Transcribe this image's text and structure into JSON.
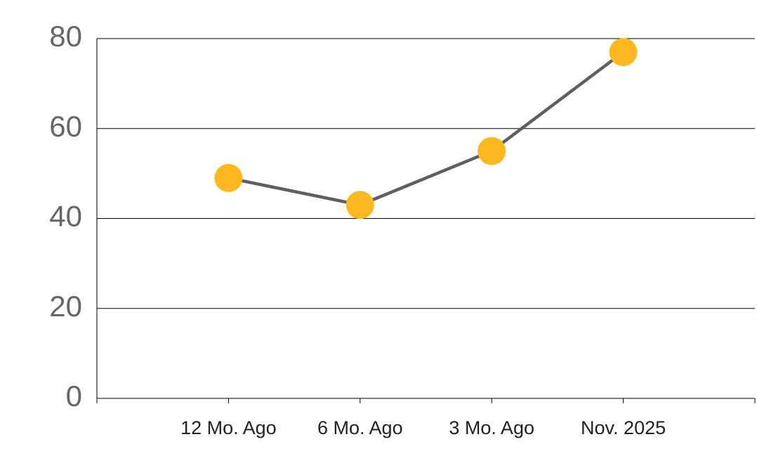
{
  "chart_data": {
    "type": "line",
    "categories": [
      "12 Mo. Ago",
      "6 Mo. Ago",
      "3 Mo. Ago",
      "Nov. 2025"
    ],
    "values": [
      49,
      43,
      55,
      77
    ],
    "color": "#fbb91f",
    "line_color": "#5f5f5f",
    "ylim": [
      0,
      80
    ],
    "yticks": [
      0,
      20,
      40,
      60,
      80
    ],
    "grid": true
  }
}
